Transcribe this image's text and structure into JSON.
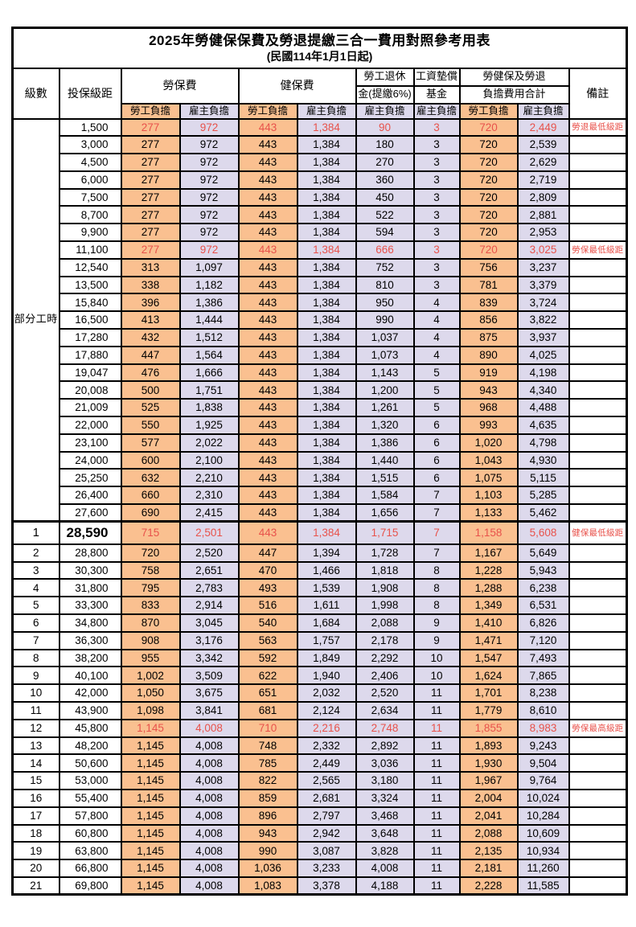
{
  "title": "2025年勞健保保費及勞退提繳三合一費用對照參考用表",
  "subtitle": "(民國114年1月1日起)",
  "header": {
    "level": "級數",
    "grade": "投保級距",
    "labor_fee": "勞保費",
    "health_fee": "健保費",
    "pension_line1": "勞工退休",
    "pension_line2": "金(提繳6%)",
    "wage_fund_line1": "工資墊償",
    "wage_fund_line2": "基金",
    "total_line1": "勞健保及勞退",
    "total_line2": "負擔費用合計",
    "remark": "備註",
    "employee": "勞工負擔",
    "employer": "雇主負擔"
  },
  "group_label": "部分工時",
  "part_time_row_count": 23,
  "colors": {
    "employee_bg": "#FAC090",
    "employer_bg": "#DDD9EC",
    "highlight_text": "#E8524B",
    "grid": "#000000"
  },
  "rows": [
    {
      "level": "",
      "grade": "1,500",
      "values": [
        "277",
        "972",
        "443",
        "1,384",
        "90",
        "3",
        "720",
        "2,449"
      ],
      "note": "勞退最低級距",
      "red": true
    },
    {
      "level": "",
      "grade": "3,000",
      "values": [
        "277",
        "972",
        "443",
        "1,384",
        "180",
        "3",
        "720",
        "2,539"
      ],
      "note": ""
    },
    {
      "level": "",
      "grade": "4,500",
      "values": [
        "277",
        "972",
        "443",
        "1,384",
        "270",
        "3",
        "720",
        "2,629"
      ],
      "note": ""
    },
    {
      "level": "",
      "grade": "6,000",
      "values": [
        "277",
        "972",
        "443",
        "1,384",
        "360",
        "3",
        "720",
        "2,719"
      ],
      "note": ""
    },
    {
      "level": "",
      "grade": "7,500",
      "values": [
        "277",
        "972",
        "443",
        "1,384",
        "450",
        "3",
        "720",
        "2,809"
      ],
      "note": ""
    },
    {
      "level": "",
      "grade": "8,700",
      "values": [
        "277",
        "972",
        "443",
        "1,384",
        "522",
        "3",
        "720",
        "2,881"
      ],
      "note": ""
    },
    {
      "level": "",
      "grade": "9,900",
      "values": [
        "277",
        "972",
        "443",
        "1,384",
        "594",
        "3",
        "720",
        "2,953"
      ],
      "note": ""
    },
    {
      "level": "",
      "grade": "11,100",
      "values": [
        "277",
        "972",
        "443",
        "1,384",
        "666",
        "3",
        "720",
        "3,025"
      ],
      "note": "勞保最低級距",
      "red": true
    },
    {
      "level": "",
      "grade": "12,540",
      "values": [
        "313",
        "1,097",
        "443",
        "1,384",
        "752",
        "3",
        "756",
        "3,237"
      ],
      "note": ""
    },
    {
      "level": "",
      "grade": "13,500",
      "values": [
        "338",
        "1,182",
        "443",
        "1,384",
        "810",
        "3",
        "781",
        "3,379"
      ],
      "note": ""
    },
    {
      "level": "",
      "grade": "15,840",
      "values": [
        "396",
        "1,386",
        "443",
        "1,384",
        "950",
        "4",
        "839",
        "3,724"
      ],
      "note": ""
    },
    {
      "level": "",
      "grade": "16,500",
      "values": [
        "413",
        "1,444",
        "443",
        "1,384",
        "990",
        "4",
        "856",
        "3,822"
      ],
      "note": ""
    },
    {
      "level": "",
      "grade": "17,280",
      "values": [
        "432",
        "1,512",
        "443",
        "1,384",
        "1,037",
        "4",
        "875",
        "3,937"
      ],
      "note": ""
    },
    {
      "level": "",
      "grade": "17,880",
      "values": [
        "447",
        "1,564",
        "443",
        "1,384",
        "1,073",
        "4",
        "890",
        "4,025"
      ],
      "note": ""
    },
    {
      "level": "",
      "grade": "19,047",
      "values": [
        "476",
        "1,666",
        "443",
        "1,384",
        "1,143",
        "5",
        "919",
        "4,198"
      ],
      "note": ""
    },
    {
      "level": "",
      "grade": "20,008",
      "values": [
        "500",
        "1,751",
        "443",
        "1,384",
        "1,200",
        "5",
        "943",
        "4,340"
      ],
      "note": ""
    },
    {
      "level": "",
      "grade": "21,009",
      "values": [
        "525",
        "1,838",
        "443",
        "1,384",
        "1,261",
        "5",
        "968",
        "4,488"
      ],
      "note": ""
    },
    {
      "level": "",
      "grade": "22,000",
      "values": [
        "550",
        "1,925",
        "443",
        "1,384",
        "1,320",
        "6",
        "993",
        "4,635"
      ],
      "note": ""
    },
    {
      "level": "",
      "grade": "23,100",
      "values": [
        "577",
        "2,022",
        "443",
        "1,384",
        "1,386",
        "6",
        "1,020",
        "4,798"
      ],
      "note": ""
    },
    {
      "level": "",
      "grade": "24,000",
      "values": [
        "600",
        "2,100",
        "443",
        "1,384",
        "1,440",
        "6",
        "1,043",
        "4,930"
      ],
      "note": ""
    },
    {
      "level": "",
      "grade": "25,250",
      "values": [
        "632",
        "2,210",
        "443",
        "1,384",
        "1,515",
        "6",
        "1,075",
        "5,115"
      ],
      "note": ""
    },
    {
      "level": "",
      "grade": "26,400",
      "values": [
        "660",
        "2,310",
        "443",
        "1,384",
        "1,584",
        "7",
        "1,103",
        "5,285"
      ],
      "note": ""
    },
    {
      "level": "",
      "grade": "27,600",
      "values": [
        "690",
        "2,415",
        "443",
        "1,384",
        "1,656",
        "7",
        "1,133",
        "5,462"
      ],
      "note": ""
    },
    {
      "level": "1",
      "grade": "28,590",
      "values": [
        "715",
        "2,501",
        "443",
        "1,384",
        "1,715",
        "7",
        "1,158",
        "5,608"
      ],
      "note": "健保最低級距",
      "red": true,
      "big": true
    },
    {
      "level": "2",
      "grade": "28,800",
      "values": [
        "720",
        "2,520",
        "447",
        "1,394",
        "1,728",
        "7",
        "1,167",
        "5,649"
      ],
      "note": ""
    },
    {
      "level": "3",
      "grade": "30,300",
      "values": [
        "758",
        "2,651",
        "470",
        "1,466",
        "1,818",
        "8",
        "1,228",
        "5,943"
      ],
      "note": ""
    },
    {
      "level": "4",
      "grade": "31,800",
      "values": [
        "795",
        "2,783",
        "493",
        "1,539",
        "1,908",
        "8",
        "1,288",
        "6,238"
      ],
      "note": ""
    },
    {
      "level": "5",
      "grade": "33,300",
      "values": [
        "833",
        "2,914",
        "516",
        "1,611",
        "1,998",
        "8",
        "1,349",
        "6,531"
      ],
      "note": ""
    },
    {
      "level": "6",
      "grade": "34,800",
      "values": [
        "870",
        "3,045",
        "540",
        "1,684",
        "2,088",
        "9",
        "1,410",
        "6,826"
      ],
      "note": ""
    },
    {
      "level": "7",
      "grade": "36,300",
      "values": [
        "908",
        "3,176",
        "563",
        "1,757",
        "2,178",
        "9",
        "1,471",
        "7,120"
      ],
      "note": ""
    },
    {
      "level": "8",
      "grade": "38,200",
      "values": [
        "955",
        "3,342",
        "592",
        "1,849",
        "2,292",
        "10",
        "1,547",
        "7,493"
      ],
      "note": ""
    },
    {
      "level": "9",
      "grade": "40,100",
      "values": [
        "1,002",
        "3,509",
        "622",
        "1,940",
        "2,406",
        "10",
        "1,624",
        "7,865"
      ],
      "note": ""
    },
    {
      "level": "10",
      "grade": "42,000",
      "values": [
        "1,050",
        "3,675",
        "651",
        "2,032",
        "2,520",
        "11",
        "1,701",
        "8,238"
      ],
      "note": ""
    },
    {
      "level": "11",
      "grade": "43,900",
      "values": [
        "1,098",
        "3,841",
        "681",
        "2,124",
        "2,634",
        "11",
        "1,779",
        "8,610"
      ],
      "note": ""
    },
    {
      "level": "12",
      "grade": "45,800",
      "values": [
        "1,145",
        "4,008",
        "710",
        "2,216",
        "2,748",
        "11",
        "1,855",
        "8,983"
      ],
      "note": "勞保最高級距",
      "red": true
    },
    {
      "level": "13",
      "grade": "48,200",
      "values": [
        "1,145",
        "4,008",
        "748",
        "2,332",
        "2,892",
        "11",
        "1,893",
        "9,243"
      ],
      "note": ""
    },
    {
      "level": "14",
      "grade": "50,600",
      "values": [
        "1,145",
        "4,008",
        "785",
        "2,449",
        "3,036",
        "11",
        "1,930",
        "9,504"
      ],
      "note": ""
    },
    {
      "level": "15",
      "grade": "53,000",
      "values": [
        "1,145",
        "4,008",
        "822",
        "2,565",
        "3,180",
        "11",
        "1,967",
        "9,764"
      ],
      "note": ""
    },
    {
      "level": "16",
      "grade": "55,400",
      "values": [
        "1,145",
        "4,008",
        "859",
        "2,681",
        "3,324",
        "11",
        "2,004",
        "10,024"
      ],
      "note": ""
    },
    {
      "level": "17",
      "grade": "57,800",
      "values": [
        "1,145",
        "4,008",
        "896",
        "2,797",
        "3,468",
        "11",
        "2,041",
        "10,284"
      ],
      "note": ""
    },
    {
      "level": "18",
      "grade": "60,800",
      "values": [
        "1,145",
        "4,008",
        "943",
        "2,942",
        "3,648",
        "11",
        "2,088",
        "10,609"
      ],
      "note": ""
    },
    {
      "level": "19",
      "grade": "63,800",
      "values": [
        "1,145",
        "4,008",
        "990",
        "3,087",
        "3,828",
        "11",
        "2,135",
        "10,934"
      ],
      "note": ""
    },
    {
      "level": "20",
      "grade": "66,800",
      "values": [
        "1,145",
        "4,008",
        "1,036",
        "3,233",
        "4,008",
        "11",
        "2,181",
        "11,260"
      ],
      "note": ""
    },
    {
      "level": "21",
      "grade": "69,800",
      "values": [
        "1,145",
        "4,008",
        "1,083",
        "3,378",
        "4,188",
        "11",
        "2,228",
        "11,585"
      ],
      "note": ""
    }
  ]
}
